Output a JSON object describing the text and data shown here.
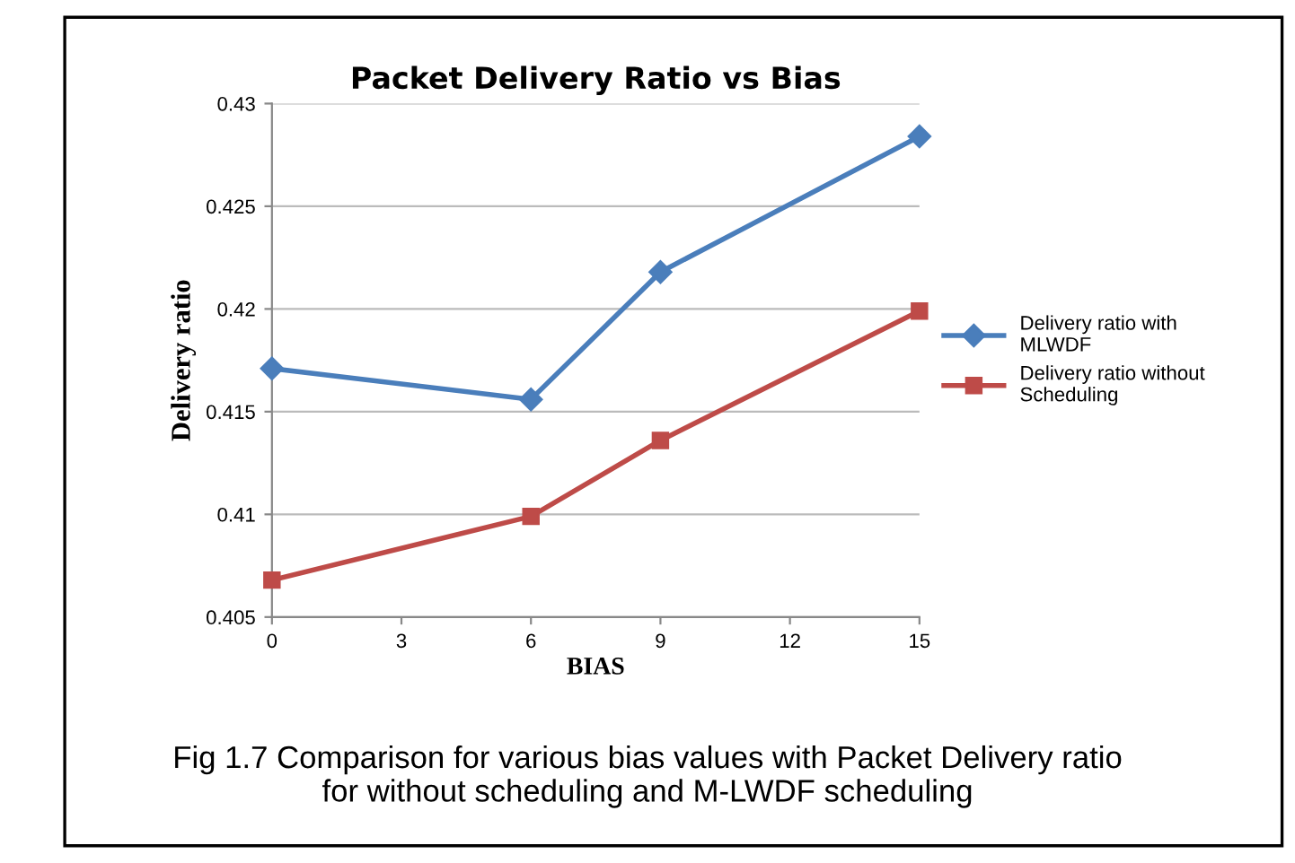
{
  "chart_data": {
    "type": "line",
    "title": "Packet Delivery Ratio vs Bias",
    "xlabel": "BIAS",
    "ylabel": "Delivery ratio",
    "x": [
      0,
      6,
      9,
      15
    ],
    "series": [
      {
        "name": "Delivery ratio with\nMLWDF",
        "color": "#4a7ebb",
        "marker": "diamond",
        "values": [
          0.4171,
          0.4156,
          0.4218,
          0.4284
        ]
      },
      {
        "name": "Delivery ratio without\nScheduling",
        "color": "#be4b48",
        "marker": "square",
        "values": [
          0.4068,
          0.4099,
          0.4136,
          0.4199
        ]
      }
    ],
    "xlim": [
      0,
      15
    ],
    "xticks": [
      0,
      3,
      6,
      9,
      12,
      15
    ],
    "ylim": [
      0.405,
      0.43
    ],
    "yticks": [
      0.405,
      0.41,
      0.415,
      0.42,
      0.425,
      0.43
    ],
    "grid": "y",
    "legend": "right",
    "line_style": "solid",
    "annotations": [
      "Fig 1.7 Comparison for various bias values with Packet Delivery ratio\nfor without scheduling and M-LWDF scheduling"
    ]
  }
}
